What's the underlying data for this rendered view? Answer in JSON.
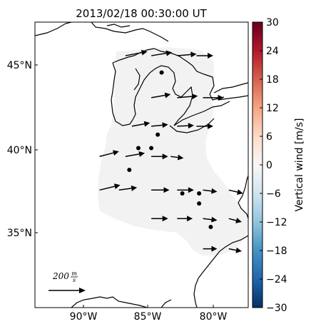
{
  "title": "2013/02/18 00:30:00 UT",
  "colorbar": {
    "label": "Vertical wind [m/s]",
    "ticks": [
      "30",
      "24",
      "18",
      "12",
      "6",
      "0",
      "−6",
      "−12",
      "−18",
      "−24",
      "−30"
    ]
  },
  "axes": {
    "lat_labels": [
      "45°N",
      "40°N",
      "35°N"
    ],
    "lon_labels": [
      "90°W",
      "85°W",
      "80°W"
    ]
  },
  "scale": {
    "value": "200",
    "unit_num": "m",
    "unit_den": "s"
  },
  "colors": {
    "coverage": "#f2f2f2",
    "arrow": "#000000",
    "land_line": "#000000"
  },
  "chart_data": {
    "type": "map",
    "lon_range": [
      -94.0,
      -77.5
    ],
    "lat_range": [
      30.5,
      47.5
    ],
    "colorbar_range": [
      -30,
      30
    ],
    "vectors": [
      {
        "lon": -87.0,
        "lat": 45.5,
        "dlon": 1.7,
        "dlat": 0.25
      },
      {
        "lon": -85.0,
        "lat": 45.5,
        "dlon": 1.6,
        "dlat": 0.2
      },
      {
        "lon": -83.0,
        "lat": 45.5,
        "dlon": 1.5,
        "dlat": 0.1
      },
      {
        "lon": -81.5,
        "lat": 45.5,
        "dlon": 1.3,
        "dlat": 0.0
      },
      {
        "lon": -85.0,
        "lat": 43.0,
        "dlon": 1.5,
        "dlat": 0.2
      },
      {
        "lon": -83.0,
        "lat": 43.0,
        "dlon": 1.6,
        "dlat": 0.1
      },
      {
        "lon": -81.0,
        "lat": 43.0,
        "dlon": 1.6,
        "dlat": 0.0
      },
      {
        "lon": -86.5,
        "lat": 41.3,
        "dlon": 1.4,
        "dlat": 0.2
      },
      {
        "lon": -85.0,
        "lat": 41.3,
        "dlon": 1.3,
        "dlat": 0.1
      },
      {
        "lon": -83.0,
        "lat": 41.3,
        "dlon": 1.3,
        "dlat": 0.05
      },
      {
        "lon": -81.5,
        "lat": 41.3,
        "dlon": 1.3,
        "dlat": 0.0
      },
      {
        "lon": -89.0,
        "lat": 39.5,
        "dlon": 1.5,
        "dlat": 0.3
      },
      {
        "lon": -87.0,
        "lat": 39.5,
        "dlon": 1.5,
        "dlat": 0.2
      },
      {
        "lon": -85.0,
        "lat": 39.5,
        "dlon": 1.3,
        "dlat": 0.0
      },
      {
        "lon": -83.5,
        "lat": 39.5,
        "dlon": 1.0,
        "dlat": -0.1
      },
      {
        "lon": -89.0,
        "lat": 37.5,
        "dlon": 1.6,
        "dlat": 0.3
      },
      {
        "lon": -87.5,
        "lat": 37.5,
        "dlon": 1.4,
        "dlat": 0.15
      },
      {
        "lon": -85.0,
        "lat": 37.5,
        "dlon": 1.4,
        "dlat": 0.0
      },
      {
        "lon": -83.0,
        "lat": 37.5,
        "dlon": 1.3,
        "dlat": 0.0
      },
      {
        "lon": -81.0,
        "lat": 37.5,
        "dlon": 1.1,
        "dlat": -0.1
      },
      {
        "lon": -79.0,
        "lat": 37.5,
        "dlon": 1.1,
        "dlat": -0.2
      },
      {
        "lon": -85.0,
        "lat": 35.8,
        "dlon": 1.3,
        "dlat": 0.0
      },
      {
        "lon": -83.0,
        "lat": 35.8,
        "dlon": 1.2,
        "dlat": 0.0
      },
      {
        "lon": -81.0,
        "lat": 35.8,
        "dlon": 1.1,
        "dlat": -0.1
      },
      {
        "lon": -79.0,
        "lat": 35.8,
        "dlon": 1.0,
        "dlat": -0.2
      },
      {
        "lon": -81.0,
        "lat": 34.0,
        "dlon": 1.1,
        "dlat": 0.0
      },
      {
        "lon": -79.0,
        "lat": 34.0,
        "dlon": 1.0,
        "dlat": -0.15
      }
    ],
    "stations": [
      {
        "lon": -84.2,
        "lat": 44.5
      },
      {
        "lon": -84.5,
        "lat": 40.8
      },
      {
        "lon": -86.0,
        "lat": 40.0
      },
      {
        "lon": -85.0,
        "lat": 40.0
      },
      {
        "lon": -86.7,
        "lat": 38.7
      },
      {
        "lon": -82.6,
        "lat": 37.3
      },
      {
        "lon": -81.3,
        "lat": 37.3
      },
      {
        "lon": -81.3,
        "lat": 36.7
      },
      {
        "lon": -80.4,
        "lat": 35.3
      }
    ]
  }
}
